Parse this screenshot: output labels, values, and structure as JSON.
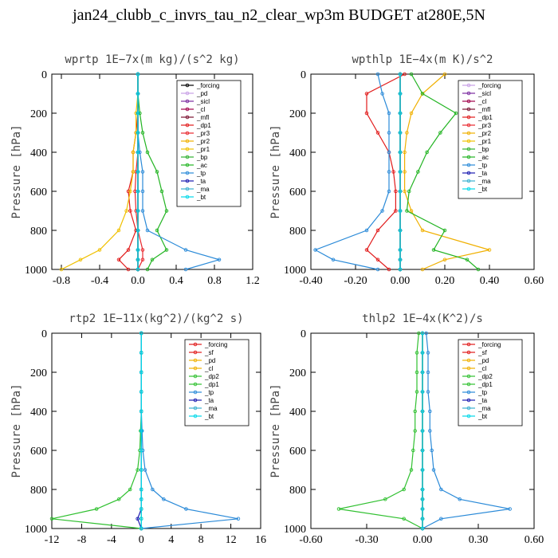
{
  "title": "jan24_clubb_c_invrs_tau_n2_clear_wp3m  BUDGET at280E,5N",
  "colors": {
    "forcing": "#000000",
    "pd": "#c8a0e6",
    "sicl": "#7a2aa0",
    "cl": "#a0004a",
    "mfl": "#7a1030",
    "dp1": "#e11a1a",
    "pr3": "#e8282e",
    "pr2": "#f0b000",
    "pr1": "#f0c000",
    "bp": "#30b030",
    "ac": "#22b422",
    "tp": "#2a8ad8",
    "ta": "#1a1ab0",
    "ma": "#3ab0d0",
    "bt": "#00d8e8",
    "sf": "#e11a1a",
    "dp2": "#30c030"
  },
  "chart_data": [
    {
      "type": "line",
      "title": "wprtp  1E−7x(m kg)/(s^2 kg)",
      "ylabel": "Pressure [hPa]",
      "xlim": [
        -0.9,
        1.2
      ],
      "ylim": [
        1000,
        0
      ],
      "xticks": [
        "-0.8",
        "-0.4",
        "0.0",
        "0.4",
        "0.8",
        "1.2"
      ],
      "xtick_values": [
        -0.8,
        -0.4,
        0.0,
        0.4,
        0.8,
        1.2
      ],
      "yticks": [
        "0",
        "200",
        "400",
        "600",
        "800",
        "1000"
      ],
      "ytick_values": [
        0,
        200,
        400,
        600,
        800,
        1000
      ],
      "legend_position": "top-right",
      "pressure": [
        0,
        100,
        200,
        300,
        400,
        500,
        600,
        700,
        800,
        900,
        950,
        1000
      ],
      "series": [
        {
          "name": "_forcing",
          "key": "forcing",
          "values": [
            0,
            0,
            0,
            0,
            0,
            0,
            0,
            0,
            0,
            0,
            0,
            0
          ]
        },
        {
          "name": "_pd",
          "key": "pd",
          "values": [
            0,
            0,
            0,
            0,
            0,
            0,
            0,
            0,
            0,
            0,
            0,
            0
          ]
        },
        {
          "name": "_sicl",
          "key": "sicl",
          "values": [
            0,
            0,
            0,
            0,
            0,
            0,
            0,
            0,
            0,
            0,
            0,
            0
          ]
        },
        {
          "name": "_cl",
          "key": "cl",
          "values": [
            0,
            0,
            0,
            0,
            0,
            0,
            0,
            0,
            0,
            0,
            0,
            0
          ]
        },
        {
          "name": "_mfl",
          "key": "mfl",
          "values": [
            0,
            0,
            0,
            0,
            0,
            0,
            0,
            0,
            0,
            0,
            0,
            0
          ]
        },
        {
          "name": "_dp1",
          "key": "dp1",
          "values": [
            0,
            0,
            0,
            -0.02,
            -0.05,
            -0.05,
            -0.1,
            -0.08,
            -0.02,
            -0.1,
            -0.2,
            -0.1
          ]
        },
        {
          "name": "_pr3",
          "key": "pr3",
          "values": [
            0,
            0,
            0,
            0,
            0,
            -0.02,
            -0.03,
            -0.02,
            0,
            0.05,
            0.05,
            0
          ]
        },
        {
          "name": "_pr2",
          "key": "pr2",
          "values": [
            0,
            0,
            0,
            0,
            0,
            0,
            0,
            0,
            0,
            0,
            0,
            0
          ]
        },
        {
          "name": "_pr1",
          "key": "pr1",
          "values": [
            0,
            0,
            -0.02,
            -0.02,
            -0.05,
            -0.05,
            -0.08,
            -0.12,
            -0.2,
            -0.4,
            -0.6,
            -0.8
          ]
        },
        {
          "name": "_bp",
          "key": "bp",
          "values": [
            0,
            0,
            0,
            0,
            0,
            0,
            0,
            0,
            0,
            0,
            0,
            0
          ]
        },
        {
          "name": "_ac",
          "key": "ac",
          "values": [
            0,
            0,
            0.02,
            0.05,
            0.1,
            0.2,
            0.25,
            0.3,
            0.2,
            0.3,
            0.15,
            0.1
          ]
        },
        {
          "name": "_tp",
          "key": "tp",
          "values": [
            0,
            0,
            0,
            0,
            0.02,
            0.05,
            0.05,
            0.05,
            0.1,
            0.5,
            0.85,
            0.5
          ]
        },
        {
          "name": "_ta",
          "key": "ta",
          "values": [
            0,
            0,
            0,
            0,
            0,
            0,
            0,
            0,
            0,
            0,
            0,
            0
          ]
        },
        {
          "name": "_ma",
          "key": "ma",
          "values": [
            0,
            0,
            0,
            0,
            0,
            0,
            0,
            0,
            0,
            0,
            0,
            0
          ]
        },
        {
          "name": "_bt",
          "key": "bt",
          "values": [
            0,
            0,
            0,
            0,
            0,
            0,
            0,
            0,
            0,
            0,
            0,
            0
          ]
        }
      ]
    },
    {
      "type": "line",
      "title": "wpthlp  1E−4x(m K)/s^2",
      "ylabel": "Pressure [hPa]",
      "xlim": [
        -0.4,
        0.6
      ],
      "ylim": [
        1000,
        0
      ],
      "xticks": [
        "-0.40",
        "-0.20",
        "0.00",
        "0.20",
        "0.40",
        "0.60"
      ],
      "xtick_values": [
        -0.4,
        -0.2,
        0.0,
        0.2,
        0.4,
        0.6
      ],
      "yticks": [
        "0",
        "200",
        "400",
        "600",
        "800",
        "1000"
      ],
      "ytick_values": [
        0,
        200,
        400,
        600,
        800,
        1000
      ],
      "legend_position": "top-right",
      "pressure": [
        0,
        100,
        200,
        300,
        400,
        500,
        600,
        700,
        800,
        900,
        950,
        1000
      ],
      "series": [
        {
          "name": "_forcing",
          "key": "pd",
          "values": [
            0,
            0,
            0,
            0,
            0,
            0,
            0,
            0,
            0,
            0,
            0,
            0
          ]
        },
        {
          "name": "_sicl",
          "key": "sicl",
          "values": [
            0,
            0,
            0,
            0,
            0,
            0,
            0,
            0,
            0,
            0,
            0,
            0
          ]
        },
        {
          "name": "_cl",
          "key": "cl",
          "values": [
            0,
            0,
            0,
            0,
            0,
            0,
            0,
            0,
            0,
            0,
            0,
            0
          ]
        },
        {
          "name": "_mfl",
          "key": "mfl",
          "values": [
            0,
            0,
            0,
            0,
            0,
            0,
            0,
            0,
            0,
            0,
            0,
            0
          ]
        },
        {
          "name": "_dp1",
          "key": "dp1",
          "values": [
            0.02,
            -0.15,
            -0.15,
            -0.1,
            -0.05,
            -0.03,
            -0.02,
            -0.02,
            -0.1,
            -0.15,
            -0.1,
            -0.05
          ]
        },
        {
          "name": "_pr3",
          "key": "pr3",
          "values": [
            0,
            0,
            0,
            0,
            0,
            0,
            0,
            0,
            0,
            0,
            0,
            0
          ]
        },
        {
          "name": "_pr2",
          "key": "pr2",
          "values": [
            0.2,
            0.1,
            0.05,
            0.03,
            0.02,
            0.02,
            0.02,
            0.05,
            0.1,
            0.4,
            0.2,
            0.1
          ]
        },
        {
          "name": "_pr1",
          "key": "pr1",
          "values": [
            0,
            0,
            0,
            0,
            0,
            0,
            0,
            0,
            0,
            0,
            0,
            0
          ]
        },
        {
          "name": "_bp",
          "key": "bp",
          "values": [
            0,
            0,
            0,
            0,
            0,
            0,
            0,
            0,
            0,
            0,
            0,
            0
          ]
        },
        {
          "name": "_ac",
          "key": "ac",
          "values": [
            0.05,
            0.1,
            0.25,
            0.18,
            0.12,
            0.08,
            0.04,
            0.03,
            0.2,
            0.15,
            0.3,
            0.35
          ]
        },
        {
          "name": "_tp",
          "key": "tp",
          "values": [
            -0.1,
            -0.08,
            -0.05,
            -0.05,
            -0.05,
            -0.05,
            -0.05,
            -0.08,
            -0.15,
            -0.38,
            -0.3,
            -0.1
          ]
        },
        {
          "name": "_ta",
          "key": "ta",
          "values": [
            0,
            0,
            0,
            0,
            0,
            0,
            0,
            0,
            0,
            0,
            0,
            0
          ]
        },
        {
          "name": "_ma",
          "key": "ma",
          "values": [
            0,
            0,
            0,
            0,
            0,
            0,
            0,
            0,
            0,
            0,
            0,
            0
          ]
        },
        {
          "name": "_bt",
          "key": "bt",
          "values": [
            0,
            0,
            0,
            0,
            0,
            0,
            0,
            0,
            0,
            0,
            0,
            0
          ]
        }
      ]
    },
    {
      "type": "line",
      "title": "rtp2  1E−11x(kg^2)/(kg^2 s)",
      "ylabel": "Pressure [hPa]",
      "xlim": [
        -12,
        16
      ],
      "ylim": [
        1000,
        0
      ],
      "xticks": [
        "-12",
        "-8",
        "-4",
        "0",
        "4",
        "8",
        "12",
        "16"
      ],
      "xtick_values": [
        -12,
        -8,
        -4,
        0,
        4,
        8,
        12,
        16
      ],
      "yticks": [
        "0",
        "200",
        "400",
        "600",
        "800",
        "1000"
      ],
      "ytick_values": [
        0,
        200,
        400,
        600,
        800,
        1000
      ],
      "legend_position": "top-right",
      "pressure": [
        0,
        100,
        200,
        300,
        400,
        500,
        600,
        700,
        800,
        850,
        900,
        950,
        1000
      ],
      "series": [
        {
          "name": "_forcing",
          "key": "sf",
          "values": [
            0,
            0,
            0,
            0,
            0,
            0,
            0,
            0,
            0,
            0,
            0,
            0,
            0
          ]
        },
        {
          "name": "_sf",
          "key": "sf",
          "values": [
            0,
            0,
            0,
            0,
            0,
            0,
            0,
            0,
            0,
            0,
            0,
            0,
            0
          ]
        },
        {
          "name": "_pd",
          "key": "pr2",
          "values": [
            0,
            0,
            0,
            0,
            0,
            0,
            0,
            0,
            0,
            0,
            0,
            0,
            0
          ]
        },
        {
          "name": "_cl",
          "key": "pr2",
          "values": [
            0,
            0,
            0,
            0,
            0,
            0,
            0,
            0,
            0,
            0,
            0,
            0,
            0
          ]
        },
        {
          "name": "_dp2",
          "key": "dp2",
          "values": [
            0,
            0,
            0,
            0,
            0,
            -0.1,
            -0.2,
            -0.5,
            -1.5,
            -3,
            -6,
            -12,
            0
          ]
        },
        {
          "name": "_dp1",
          "key": "dp2",
          "values": [
            0,
            0,
            0,
            0,
            0,
            0,
            0,
            0,
            0,
            0,
            0,
            0,
            0
          ]
        },
        {
          "name": "_tp",
          "key": "tp",
          "values": [
            0,
            0,
            0,
            0,
            0,
            0.1,
            0.2,
            0.5,
            1.5,
            3,
            6,
            13,
            0
          ]
        },
        {
          "name": "_ta",
          "key": "ta",
          "values": [
            0,
            0,
            0,
            0,
            0,
            0,
            0,
            0,
            0,
            0,
            0,
            -0.5,
            0
          ]
        },
        {
          "name": "_ma",
          "key": "ma",
          "values": [
            0,
            0,
            0,
            0,
            0,
            0,
            0,
            0,
            0,
            0,
            0,
            0,
            0
          ]
        },
        {
          "name": "_bt",
          "key": "bt",
          "values": [
            0,
            0,
            0,
            0,
            0,
            0,
            0,
            0,
            0,
            0,
            0,
            0,
            0
          ]
        }
      ]
    },
    {
      "type": "line",
      "title": "thlp2  1E−4x(K^2)/s",
      "ylabel": "Pressure [hPa]",
      "xlim": [
        -0.6,
        0.6
      ],
      "ylim": [
        1000,
        0
      ],
      "xticks": [
        "-0.60",
        "-0.30",
        "0.00",
        "0.30",
        "0.60"
      ],
      "xtick_values": [
        -0.6,
        -0.3,
        0.0,
        0.3,
        0.6
      ],
      "yticks": [
        "0",
        "200",
        "400",
        "600",
        "800",
        "1000"
      ],
      "ytick_values": [
        0,
        200,
        400,
        600,
        800,
        1000
      ],
      "legend_position": "top-right",
      "pressure": [
        0,
        100,
        200,
        300,
        400,
        500,
        600,
        700,
        800,
        850,
        900,
        950,
        1000
      ],
      "series": [
        {
          "name": "_forcing",
          "key": "sf",
          "values": [
            0,
            0,
            0,
            0,
            0,
            0,
            0,
            0,
            0,
            0,
            0,
            0,
            0
          ]
        },
        {
          "name": "_sf",
          "key": "sf",
          "values": [
            0,
            0,
            0,
            0,
            0,
            0,
            0,
            0,
            0,
            0,
            0,
            0,
            0
          ]
        },
        {
          "name": "_pd",
          "key": "pr2",
          "values": [
            0,
            0,
            0,
            0,
            0,
            0,
            0,
            0,
            0,
            0,
            0,
            0,
            0
          ]
        },
        {
          "name": "_cl",
          "key": "pr2",
          "values": [
            0,
            0,
            0,
            0,
            0,
            0,
            0,
            0,
            0,
            0,
            0,
            0,
            0
          ]
        },
        {
          "name": "_dp2",
          "key": "dp2",
          "values": [
            -0.02,
            -0.03,
            -0.03,
            -0.03,
            -0.04,
            -0.04,
            -0.05,
            -0.06,
            -0.1,
            -0.2,
            -0.45,
            -0.1,
            0
          ]
        },
        {
          "name": "_dp1",
          "key": "dp2",
          "values": [
            0,
            0,
            0,
            0,
            0,
            0,
            0,
            0,
            0,
            0,
            0,
            0,
            0
          ]
        },
        {
          "name": "_tp",
          "key": "tp",
          "values": [
            0.02,
            0.03,
            0.03,
            0.03,
            0.04,
            0.04,
            0.05,
            0.06,
            0.1,
            0.2,
            0.47,
            0.1,
            0
          ]
        },
        {
          "name": "_ta",
          "key": "ta",
          "values": [
            0,
            0,
            0,
            0,
            0,
            0,
            0,
            0,
            0,
            0,
            0,
            0,
            0
          ]
        },
        {
          "name": "_ma",
          "key": "ma",
          "values": [
            0,
            0,
            0,
            0,
            0,
            0,
            0,
            0,
            0,
            0,
            0,
            0,
            0
          ]
        },
        {
          "name": "_bt",
          "key": "bt",
          "values": [
            0,
            0,
            0,
            0,
            0,
            0,
            0,
            0,
            0,
            0,
            0,
            0,
            0
          ]
        }
      ]
    }
  ]
}
